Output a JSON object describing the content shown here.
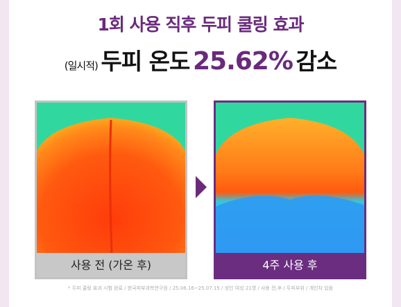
{
  "header": {
    "title": "1회 사용 직후 두피 쿨링 효과",
    "note": "(일시적)",
    "subject": "두피 온도",
    "figure": "25.62%",
    "result": "감소"
  },
  "panels": [
    {
      "caption": "사용 전 (가온 후)"
    },
    {
      "caption": "4주 사용 후"
    }
  ],
  "footnote": "* 두피 쿨링 효과 시험 완료 / 한국피부과학연구원 / 25.06.16~25.07.15 / 성인 여성 21명 / 사용 전,후 / 두피부위 / 개인차 있음"
}
